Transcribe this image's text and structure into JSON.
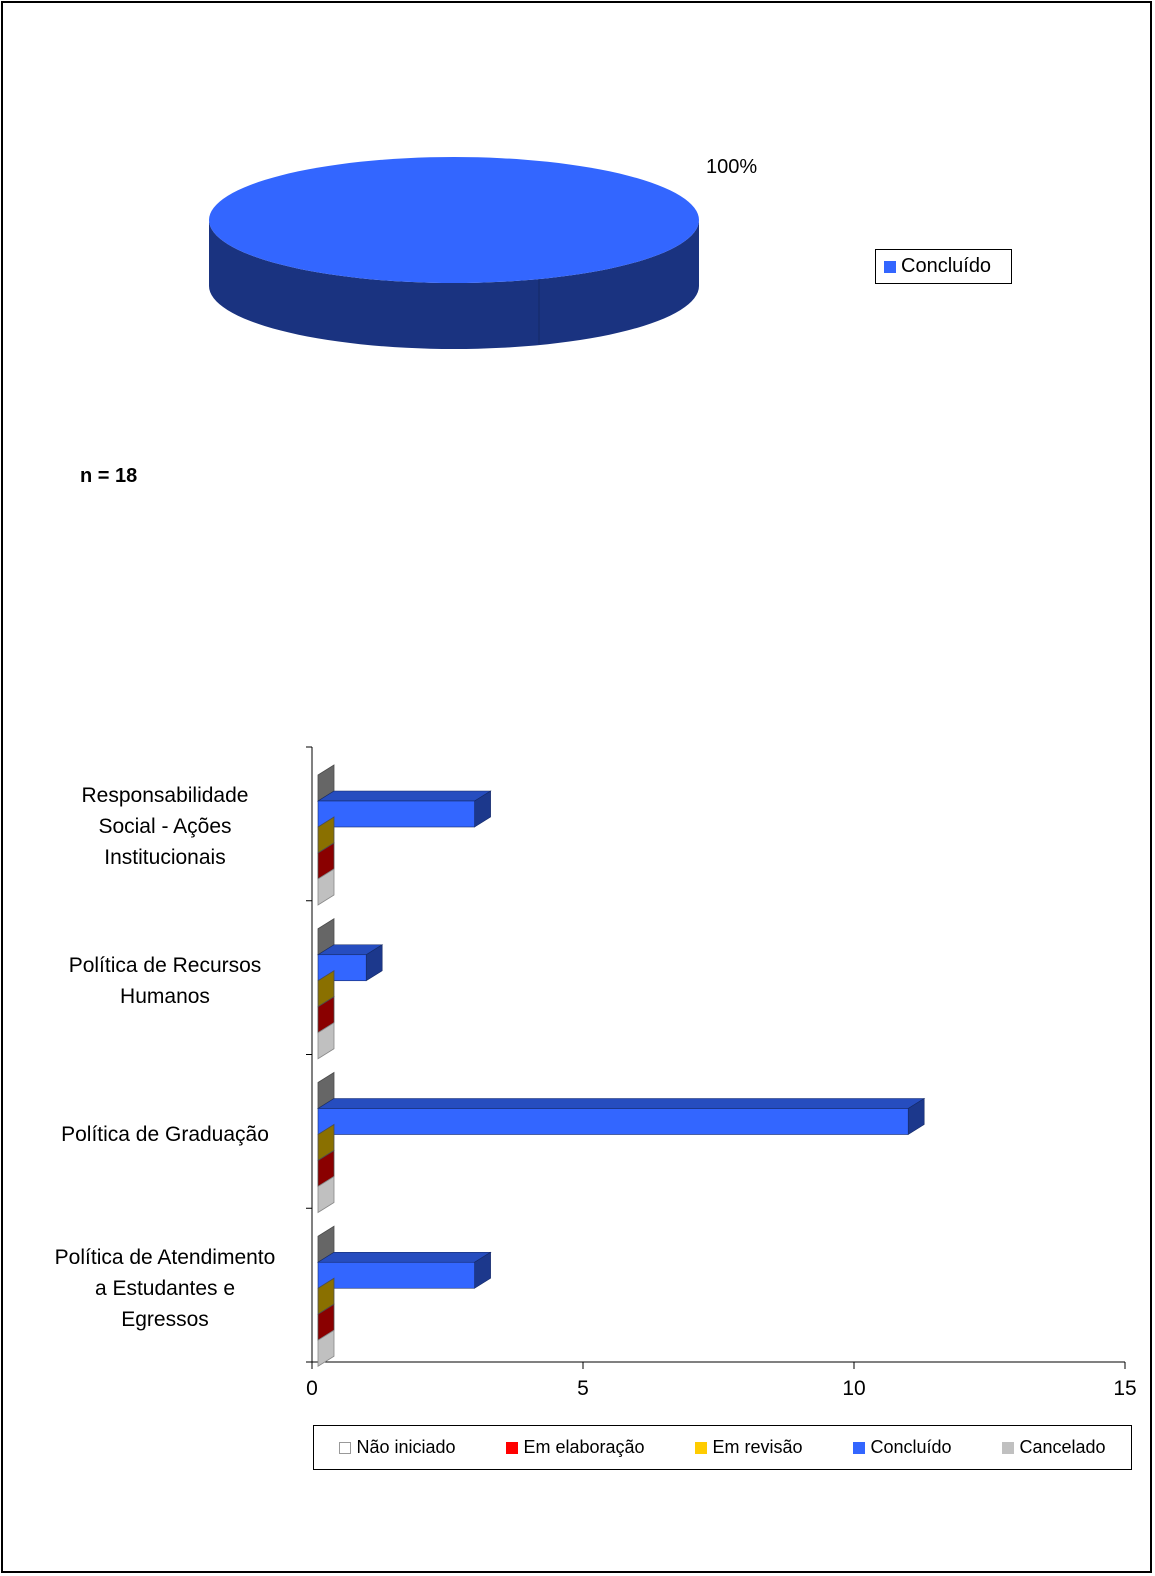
{
  "pie_chart": {
    "slice_label": "100%",
    "legend": [
      {
        "label": "Concluído",
        "color": "#3366ff"
      }
    ],
    "n_label": "n = 18"
  },
  "chart_data": [
    {
      "type": "pie",
      "labels": [
        "Concluído"
      ],
      "values": [
        100
      ],
      "data_labels": [
        "100%"
      ],
      "colors": [
        "#3366ff"
      ],
      "3d": true,
      "legend_position": "right"
    },
    {
      "type": "bar",
      "orientation": "horizontal",
      "3d": true,
      "categories": [
        "Responsabilidade Social - Ações Institucionais",
        "Política de Recursos Humanos",
        "Política de Graduação",
        "Política de Atendimento a Estudantes e Egressos"
      ],
      "category_lines": [
        [
          "Responsabilidade",
          "Social - Ações",
          "Institucionais"
        ],
        [
          "Política de Recursos",
          "Humanos"
        ],
        [
          "Política de Graduação"
        ],
        [
          "Política de Atendimento",
          "a Estudantes e",
          "Egressos"
        ]
      ],
      "series": [
        {
          "name": "Não iniciado",
          "values": [
            0,
            0,
            0,
            0
          ],
          "color": "#ffffff"
        },
        {
          "name": "Em elaboração",
          "values": [
            0,
            0,
            0,
            0
          ],
          "color": "#ff0000"
        },
        {
          "name": "Em revisão",
          "values": [
            0,
            0,
            0,
            0
          ],
          "color": "#ffcc00"
        },
        {
          "name": "Concluído",
          "values": [
            3,
            1,
            11,
            3
          ],
          "color": "#3366ff"
        },
        {
          "name": "Cancelado",
          "values": [
            0,
            0,
            0,
            0
          ],
          "color": "#c0c0c0"
        }
      ],
      "xlim": [
        0,
        15
      ],
      "x_ticks": [
        0,
        5,
        10,
        15
      ],
      "legend_position": "bottom"
    }
  ]
}
